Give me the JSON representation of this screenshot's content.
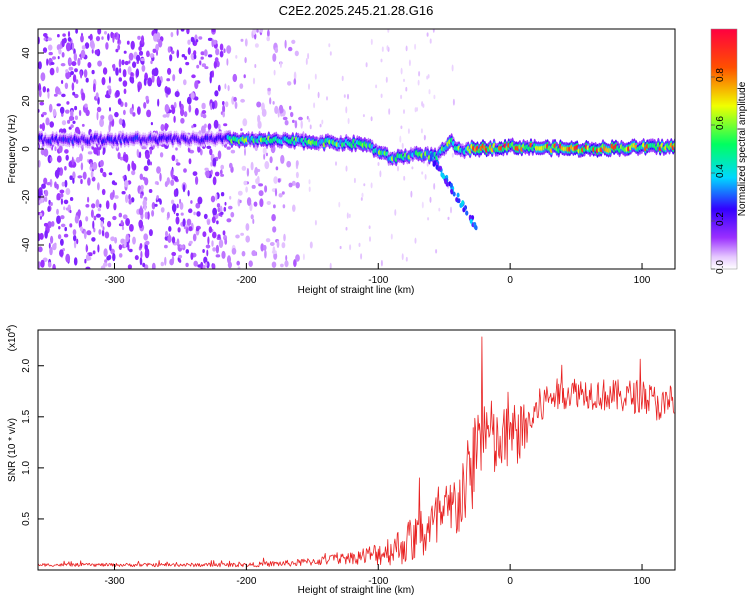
{
  "chart_data": [
    {
      "type": "heatmap",
      "title": "C2E2.2025.245.21.28.G16",
      "xlabel": "Height of straight line (km)",
      "ylabel": "Frequency (Hz)",
      "xlim": [
        -358,
        125
      ],
      "ylim": [
        -50,
        50
      ],
      "xticks": [
        "-300",
        "-200",
        "-100",
        "0",
        "100"
      ],
      "yticks": [
        "40",
        "20",
        "0",
        "-20",
        "-40"
      ],
      "grid": false,
      "colorbar": {
        "label": "Normalized spectral amplitude",
        "range": [
          0,
          1
        ],
        "ticks": [
          "0.0",
          "0.2",
          "0.4",
          "0.6",
          "0.8"
        ],
        "colors": [
          "#ffffff",
          "#e6c8ff",
          "#9b30ff",
          "#3300ff",
          "#00d8ff",
          "#00ff60",
          "#f0ff00",
          "#ff5000",
          "#ff0040"
        ]
      },
      "ridge": [
        {
          "x": -210,
          "y": 4
        },
        {
          "x": -150,
          "y": 3
        },
        {
          "x": -110,
          "y": 2
        },
        {
          "x": -90,
          "y": -4
        },
        {
          "x": -70,
          "y": -2
        },
        {
          "x": -55,
          "y": -3
        },
        {
          "x": -45,
          "y": 3
        },
        {
          "x": -38,
          "y": -1
        },
        {
          "x": -30,
          "y": 0
        },
        {
          "x": 0,
          "y": 1
        },
        {
          "x": 50,
          "y": 0
        },
        {
          "x": 125,
          "y": 1
        }
      ]
    },
    {
      "type": "line",
      "xlabel": "Height of straight line (km)",
      "ylabel": "SNR (10 * v/v)",
      "yscale_label": "(x10",
      "yscale_exp": "4",
      "xlim": [
        -358,
        125
      ],
      "ylim": [
        0,
        23500
      ],
      "xticks": [
        "-300",
        "-200",
        "-100",
        "0",
        "100"
      ],
      "yticks": [
        "0.5",
        "1.0",
        "1.5",
        "2.0"
      ],
      "line_color": "#e82020",
      "grid": false,
      "points": [
        {
          "x": -358,
          "y": 500
        },
        {
          "x": -200,
          "y": 500
        },
        {
          "x": -160,
          "y": 700
        },
        {
          "x": -120,
          "y": 1200
        },
        {
          "x": -100,
          "y": 1600
        },
        {
          "x": -80,
          "y": 2500
        },
        {
          "x": -60,
          "y": 4000
        },
        {
          "x": -45,
          "y": 5500
        },
        {
          "x": -30,
          "y": 9000
        },
        {
          "x": -25,
          "y": 13000
        },
        {
          "x": -20,
          "y": 14000
        },
        {
          "x": -10,
          "y": 12000
        },
        {
          "x": 0,
          "y": 13000
        },
        {
          "x": 10,
          "y": 13500
        },
        {
          "x": 20,
          "y": 15500
        },
        {
          "x": 30,
          "y": 17000
        },
        {
          "x": 50,
          "y": 17500
        },
        {
          "x": 80,
          "y": 17000
        },
        {
          "x": 100,
          "y": 17000
        },
        {
          "x": 125,
          "y": 15500
        }
      ],
      "spread": [
        {
          "x": -358,
          "y": 150
        },
        {
          "x": -200,
          "y": 200
        },
        {
          "x": -160,
          "y": 350
        },
        {
          "x": -120,
          "y": 600
        },
        {
          "x": -100,
          "y": 1200
        },
        {
          "x": -80,
          "y": 2000
        },
        {
          "x": -60,
          "y": 3000
        },
        {
          "x": -45,
          "y": 3500
        },
        {
          "x": -30,
          "y": 4500
        },
        {
          "x": -20,
          "y": 4500
        },
        {
          "x": -10,
          "y": 3500
        },
        {
          "x": 0,
          "y": 3500
        },
        {
          "x": 20,
          "y": 2000
        },
        {
          "x": 40,
          "y": 1500
        },
        {
          "x": 125,
          "y": 1800
        }
      ]
    }
  ]
}
